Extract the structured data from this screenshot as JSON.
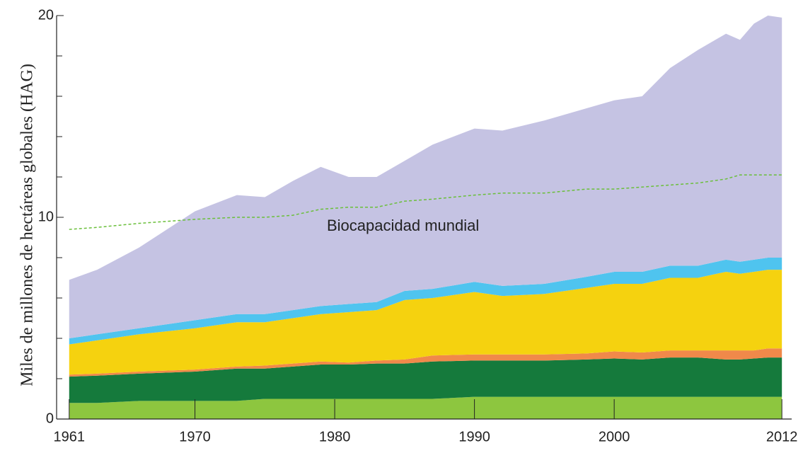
{
  "chart_data": {
    "type": "stacked_area",
    "y_label": "Miles de millones de hectáreas globales (HAG)",
    "x": [
      1961,
      1963,
      1966,
      1970,
      1973,
      1975,
      1977,
      1979,
      1981,
      1983,
      1985,
      1987,
      1990,
      1992,
      1995,
      1998,
      2000,
      2002,
      2004,
      2006,
      2008,
      2009,
      2010,
      2011,
      2012
    ],
    "series": [
      {
        "color": "#8dc63f",
        "values": [
          0.8,
          0.8,
          0.9,
          0.9,
          0.9,
          1.0,
          1.0,
          1.0,
          1.0,
          1.0,
          1.0,
          1.0,
          1.1,
          1.1,
          1.1,
          1.1,
          1.1,
          1.1,
          1.1,
          1.1,
          1.1,
          1.1,
          1.1,
          1.1,
          1.1
        ]
      },
      {
        "color": "#157a3c",
        "values": [
          1.3,
          1.35,
          1.35,
          1.45,
          1.6,
          1.5,
          1.6,
          1.7,
          1.7,
          1.75,
          1.75,
          1.85,
          1.8,
          1.8,
          1.8,
          1.85,
          1.9,
          1.85,
          1.95,
          1.95,
          1.85,
          1.85,
          1.9,
          1.95,
          1.95
        ]
      },
      {
        "color": "#f0894a",
        "values": [
          0.1,
          0.1,
          0.1,
          0.1,
          0.1,
          0.15,
          0.15,
          0.15,
          0.1,
          0.15,
          0.2,
          0.3,
          0.3,
          0.3,
          0.3,
          0.3,
          0.35,
          0.35,
          0.35,
          0.35,
          0.45,
          0.45,
          0.4,
          0.45,
          0.45
        ]
      },
      {
        "color": "#f5d20f",
        "values": [
          1.5,
          1.65,
          1.85,
          2.05,
          2.2,
          2.15,
          2.25,
          2.35,
          2.5,
          2.5,
          2.95,
          2.85,
          3.1,
          2.9,
          3.0,
          3.25,
          3.35,
          3.4,
          3.6,
          3.6,
          3.9,
          3.8,
          3.9,
          3.9,
          3.9
        ]
      },
      {
        "color": "#4fc4ef",
        "values": [
          0.3,
          0.3,
          0.3,
          0.4,
          0.4,
          0.4,
          0.4,
          0.4,
          0.4,
          0.4,
          0.45,
          0.45,
          0.5,
          0.5,
          0.5,
          0.55,
          0.6,
          0.6,
          0.6,
          0.6,
          0.6,
          0.6,
          0.6,
          0.6,
          0.6
        ]
      },
      {
        "color": "#c5c3e3",
        "values": [
          2.9,
          3.2,
          4.0,
          5.4,
          5.9,
          5.8,
          6.4,
          6.9,
          6.3,
          6.2,
          6.45,
          7.15,
          7.6,
          7.7,
          8.1,
          8.35,
          8.5,
          8.7,
          9.8,
          10.7,
          11.2,
          11.0,
          11.7,
          12.0,
          11.9
        ]
      }
    ],
    "line": {
      "name": "Biocapacidad mundial",
      "color": "#6abf3a",
      "dashed": true,
      "values": [
        9.4,
        9.5,
        9.7,
        9.9,
        10.0,
        10.0,
        10.1,
        10.4,
        10.5,
        10.5,
        10.8,
        10.9,
        11.1,
        11.2,
        11.2,
        11.4,
        11.4,
        11.5,
        11.6,
        11.7,
        11.9,
        12.1,
        12.1,
        12.1,
        12.1
      ]
    },
    "xlim": [
      1960.1,
      2012.7
    ],
    "xticks": [
      1961,
      1970,
      1980,
      1990,
      2000,
      2012
    ],
    "ylim": [
      0,
      20
    ],
    "yticks": [
      0,
      10,
      20
    ],
    "yminorticks": [
      2,
      4,
      6,
      8,
      12,
      14,
      16,
      18
    ]
  }
}
